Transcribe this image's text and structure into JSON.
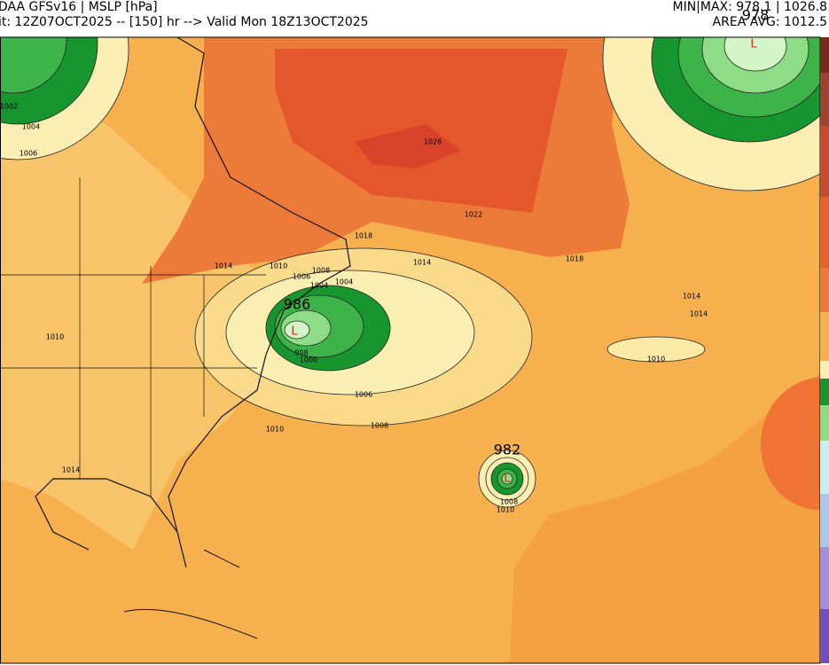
{
  "header": {
    "model": "DAA GFSv16 | MSLP [hPa]",
    "run": "it: 12Z07OCT2025 -- [150] hr --> Valid Mon 18Z13OCT2025",
    "minmax": "MIN|MAX: 978.1 | 1026.8",
    "avg": "AREA AVG: 1012.5"
  },
  "map": {
    "lows": [
      {
        "pressure": 978,
        "marker": "L"
      },
      {
        "pressure": 986,
        "marker": "L"
      },
      {
        "pressure": 982,
        "marker": "L"
      }
    ],
    "contour_labels": [
      1002,
      1004,
      1006,
      1010,
      1014,
      1010,
      1008,
      1006,
      1004,
      1004,
      1018,
      1014,
      1022,
      1026,
      1018,
      1014,
      1014,
      1010,
      998,
      1000,
      1006,
      1008,
      1010,
      1014,
      1008,
      1010
    ]
  }
}
